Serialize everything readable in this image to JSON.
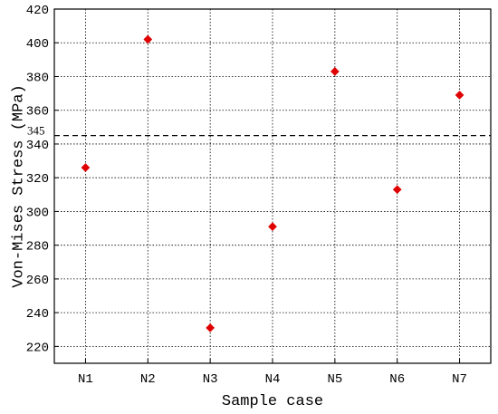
{
  "chart_data": {
    "type": "scatter",
    "categories": [
      "N1",
      "N2",
      "N3",
      "N4",
      "N5",
      "N6",
      "N7"
    ],
    "series": [
      {
        "values": [
          326,
          402,
          231,
          291,
          383,
          313,
          369
        ],
        "color": "#e00000",
        "marker": "diamond"
      }
    ],
    "xlabel": "Sample case",
    "ylabel": "Von-Mises Stress (MPa)",
    "ylim": [
      210,
      420
    ],
    "yticks": [
      220,
      240,
      260,
      280,
      300,
      320,
      340,
      360,
      380,
      400,
      420
    ],
    "grid": true,
    "reference_line": {
      "value": 345,
      "label": "345",
      "style": "dashed",
      "color": "#000000"
    }
  }
}
